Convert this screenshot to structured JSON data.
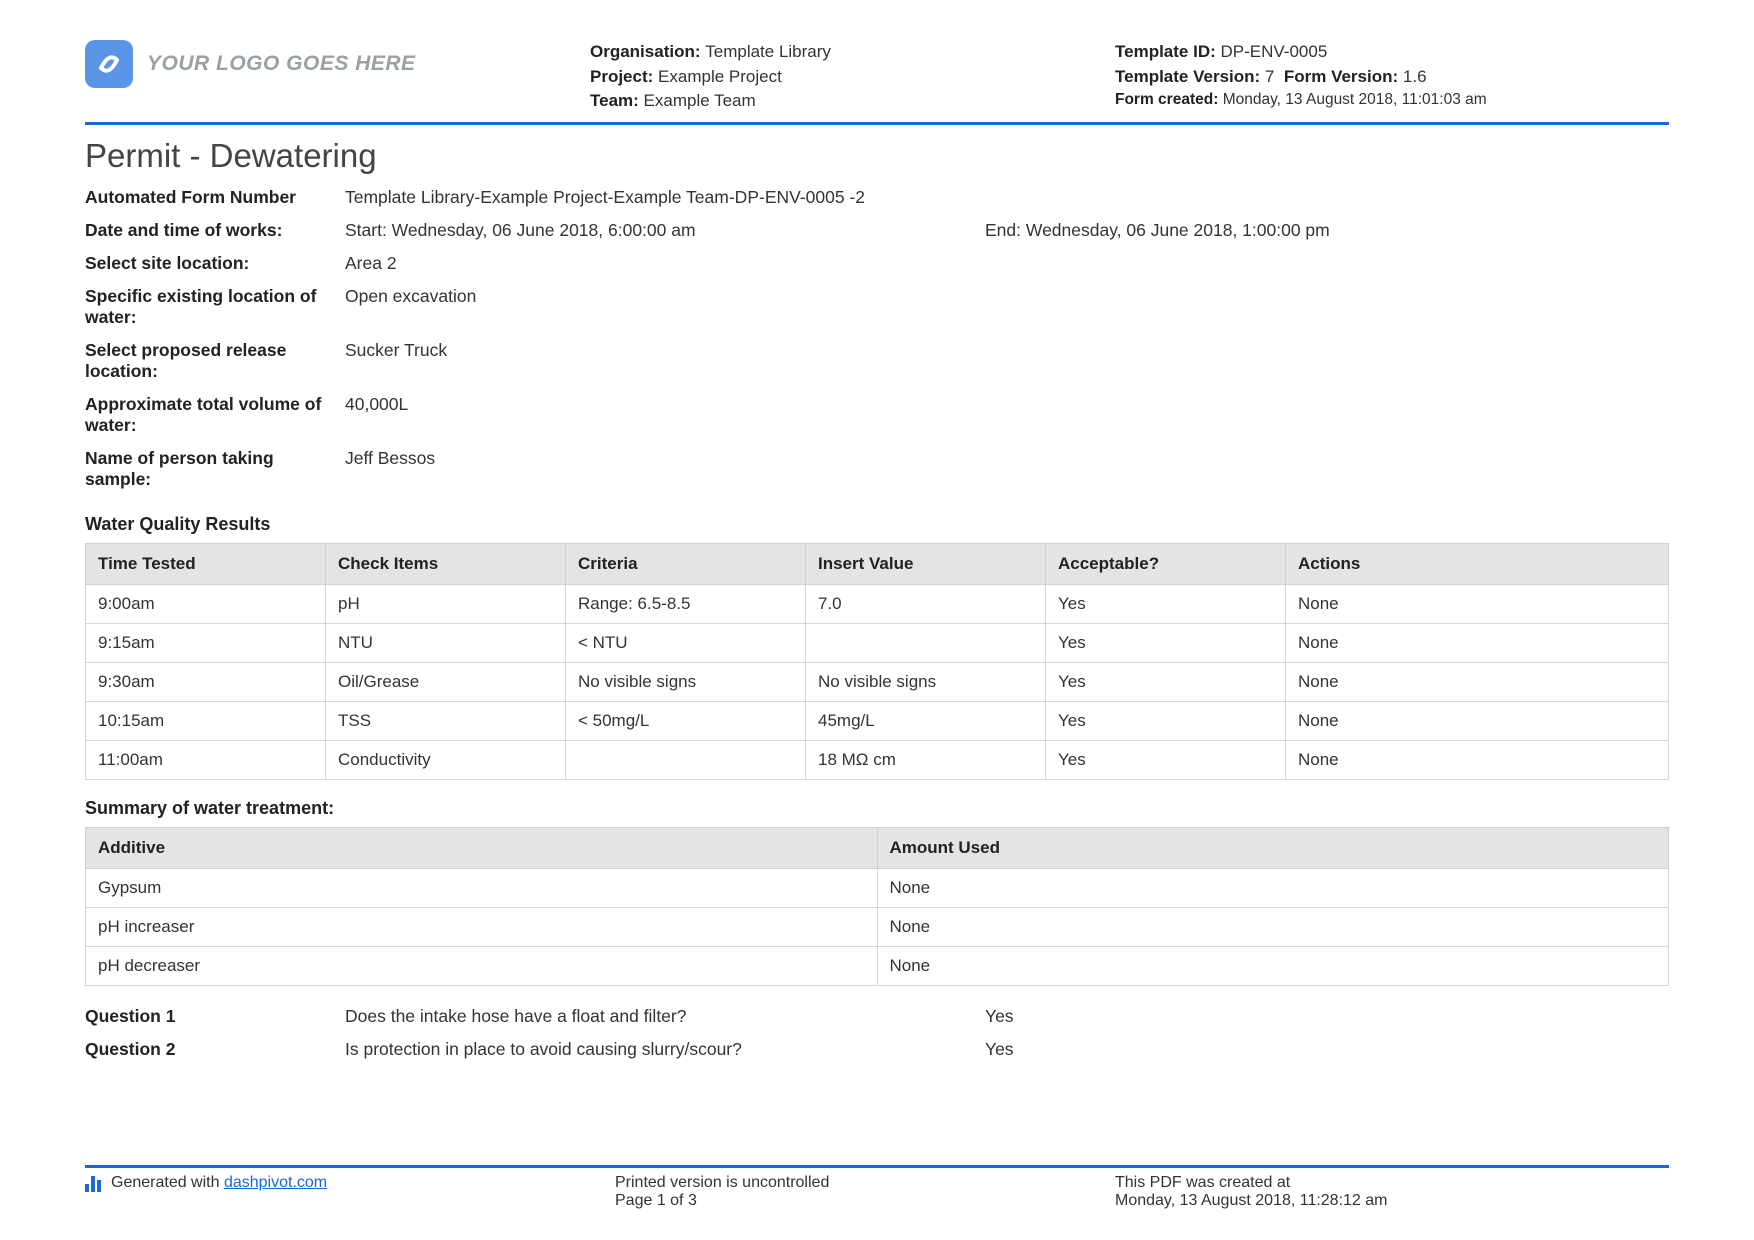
{
  "colors": {
    "accent": "#1869d6",
    "logo_bg": "#5b95e8",
    "table_header_bg": "#e4e4e4",
    "table_border": "#d8d8d8",
    "text": "#333333",
    "muted": "#9aa0a7"
  },
  "header": {
    "logo_placeholder": "YOUR LOGO GOES HERE",
    "org_label": "Organisation:",
    "org_value": "Template Library",
    "project_label": "Project:",
    "project_value": "Example Project",
    "team_label": "Team:",
    "team_value": "Example Team",
    "template_id_label": "Template ID:",
    "template_id_value": "DP-ENV-0005",
    "template_version_label": "Template Version:",
    "template_version_value": "7",
    "form_version_label": "Form Version:",
    "form_version_value": "1.6",
    "form_created_label": "Form created:",
    "form_created_value": "Monday, 13 August 2018, 11:01:03 am"
  },
  "title": "Permit - Dewatering",
  "fields": {
    "form_number_label": "Automated Form Number",
    "form_number_value": "Template Library-Example Project-Example Team-DP-ENV-0005   -2",
    "works_label": "Date and time of works:",
    "works_start": "Start: Wednesday, 06 June 2018, 6:00:00 am",
    "works_end": "End: Wednesday, 06 June 2018, 1:00:00 pm",
    "site_label": "Select site location:",
    "site_value": "Area 2",
    "existing_label": "Specific existing location of water:",
    "existing_value": "Open excavation",
    "release_label": "Select proposed release location:",
    "release_value": "Sucker Truck",
    "volume_label": "Approximate total volume of water:",
    "volume_value": "40,000L",
    "sampler_label": "Name of person taking sample:",
    "sampler_value": "Jeff Bessos"
  },
  "water_quality": {
    "title": "Water Quality Results",
    "columns": [
      "Time Tested",
      "Check Items",
      "Criteria",
      "Insert Value",
      "Acceptable?",
      "Actions"
    ],
    "rows": [
      [
        "9:00am",
        "pH",
        "Range: 6.5-8.5",
        "7.0",
        "Yes",
        "None"
      ],
      [
        "9:15am",
        "NTU",
        "< NTU",
        "",
        "Yes",
        "None"
      ],
      [
        "9:30am",
        "Oil/Grease",
        "No visible signs",
        "No visible signs",
        "Yes",
        "None"
      ],
      [
        "10:15am",
        "TSS",
        "< 50mg/L",
        "45mg/L",
        "Yes",
        "None"
      ],
      [
        "11:00am",
        "Conductivity",
        "",
        "18 MΩ cm",
        "Yes",
        "None"
      ]
    ]
  },
  "summary": {
    "title": "Summary of water treatment:",
    "columns": [
      "Additive",
      "Amount Used"
    ],
    "rows": [
      [
        "Gypsum",
        "None"
      ],
      [
        "pH increaser",
        "None"
      ],
      [
        "pH decreaser",
        "None"
      ]
    ]
  },
  "questions": {
    "q1_label": "Question 1",
    "q1_text": "Does the intake hose have a float and filter?",
    "q1_answer": "Yes",
    "q2_label": "Question 2",
    "q2_text": "Is protection in place to avoid causing slurry/scour?",
    "q2_answer": "Yes"
  },
  "footer": {
    "generated_prefix": "Generated with ",
    "generated_link": "dashpivot.com",
    "uncontrolled": "Printed version is uncontrolled",
    "page": "Page 1 of 3",
    "created_label": "This PDF was created at",
    "created_value": "Monday, 13 August 2018, 11:28:12 am"
  }
}
